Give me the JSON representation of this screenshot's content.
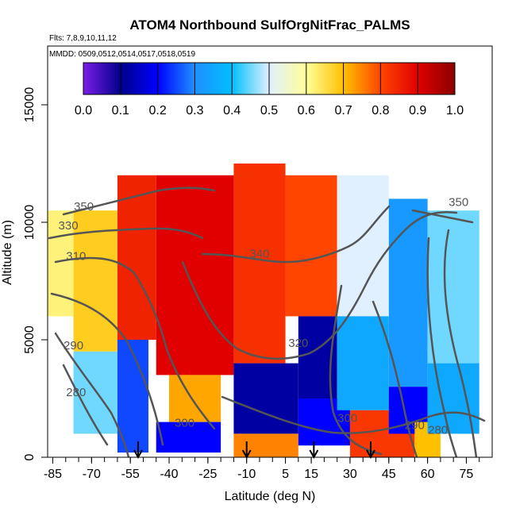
{
  "chart_data": {
    "type": "heatmap",
    "title": "ATOM4 Northbound SulfOrgNitFrac_PALMS",
    "subtitle_flights": "Flts: 7,8,9,10,11,12",
    "subtitle_dates": "MMDD: 0509,0512,0514,0517,0518,0519",
    "xlabel": "Latitude (deg N)",
    "ylabel": "Altitude (m)",
    "xlim": [
      -87,
      85
    ],
    "ylim": [
      0,
      17500
    ],
    "x_ticks": [
      -85,
      -70,
      -55,
      -40,
      -25,
      -10,
      5,
      15,
      30,
      45,
      60,
      75
    ],
    "x_tick_labels": [
      "-85",
      "-70",
      "-55",
      "-40",
      "-25",
      "-10",
      "5",
      "15",
      "30",
      "45",
      "60",
      "75"
    ],
    "y_ticks": [
      0,
      5000,
      10000,
      15000
    ],
    "y_tick_labels": [
      "0",
      "5000",
      "10000",
      "15000"
    ],
    "colorbar": {
      "range": [
        0.0,
        1.0
      ],
      "ticks": [
        0.0,
        0.1,
        0.2,
        0.3,
        0.4,
        0.5,
        0.6,
        0.7,
        0.8,
        0.9,
        1.0
      ],
      "tick_labels": [
        "0.0",
        "0.1",
        "0.2",
        "0.3",
        "0.4",
        "0.5",
        "0.6",
        "0.7",
        "0.8",
        "0.9",
        "1.0"
      ],
      "colors": [
        "#7a1ee6",
        "#00008b",
        "#0000ff",
        "#1e90ff",
        "#00bfff",
        "#e0f0ff",
        "#ffff99",
        "#ffc000",
        "#ff4500",
        "#e00000",
        "#8b0000"
      ]
    },
    "grid": false,
    "regions": [
      {
        "x": [
          -77,
          -60
        ],
        "y": [
          4500,
          10500
        ],
        "value": 0.68
      },
      {
        "x": [
          -87,
          -77
        ],
        "y": [
          6000,
          10500
        ],
        "value": 0.62
      },
      {
        "x": [
          -77,
          -60
        ],
        "y": [
          1000,
          4500
        ],
        "value": 0.45
      },
      {
        "x": [
          -60,
          -48
        ],
        "y": [
          200,
          5000
        ],
        "value": 0.25
      },
      {
        "x": [
          -60,
          -45
        ],
        "y": [
          5000,
          12000
        ],
        "value": 0.85
      },
      {
        "x": [
          -45,
          -15
        ],
        "y": [
          3500,
          12000
        ],
        "value": 0.9
      },
      {
        "x": [
          -40,
          -20
        ],
        "y": [
          1500,
          3500
        ],
        "value": 0.72
      },
      {
        "x": [
          -45,
          -20
        ],
        "y": [
          200,
          1500
        ],
        "value": 0.2
      },
      {
        "x": [
          -15,
          5
        ],
        "y": [
          4000,
          12500
        ],
        "value": 0.83
      },
      {
        "x": [
          -15,
          10
        ],
        "y": [
          1000,
          4000
        ],
        "value": 0.12
      },
      {
        "x": [
          -15,
          10
        ],
        "y": [
          0,
          1000
        ],
        "value": 0.75
      },
      {
        "x": [
          5,
          25
        ],
        "y": [
          6000,
          12000
        ],
        "value": 0.8
      },
      {
        "x": [
          10,
          25
        ],
        "y": [
          2500,
          6000
        ],
        "value": 0.12
      },
      {
        "x": [
          10,
          30
        ],
        "y": [
          500,
          2500
        ],
        "value": 0.2
      },
      {
        "x": [
          25,
          45
        ],
        "y": [
          6000,
          12000
        ],
        "value": 0.5
      },
      {
        "x": [
          25,
          45
        ],
        "y": [
          2000,
          6000
        ],
        "value": 0.35
      },
      {
        "x": [
          30,
          55
        ],
        "y": [
          0,
          2000
        ],
        "value": 0.82
      },
      {
        "x": [
          45,
          60
        ],
        "y": [
          3000,
          11000
        ],
        "value": 0.32
      },
      {
        "x": [
          45,
          60
        ],
        "y": [
          1000,
          3000
        ],
        "value": 0.2
      },
      {
        "x": [
          55,
          65
        ],
        "y": [
          0,
          1500
        ],
        "value": 0.7
      },
      {
        "x": [
          60,
          80
        ],
        "y": [
          4000,
          10500
        ],
        "value": 0.45
      },
      {
        "x": [
          60,
          80
        ],
        "y": [
          1000,
          4000
        ],
        "value": 0.35
      }
    ],
    "contour_labels": [
      {
        "text": "350",
        "x": -73,
        "y": 10500
      },
      {
        "text": "330",
        "x": -79,
        "y": 9700
      },
      {
        "text": "310",
        "x": -76,
        "y": 8400
      },
      {
        "text": "290",
        "x": -77,
        "y": 4600
      },
      {
        "text": "280",
        "x": -76,
        "y": 2600
      },
      {
        "text": "300",
        "x": -34,
        "y": 1300
      },
      {
        "text": "340",
        "x": -5,
        "y": 8500
      },
      {
        "text": "320",
        "x": 10,
        "y": 4700
      },
      {
        "text": "300",
        "x": 29,
        "y": 1500
      },
      {
        "text": "290",
        "x": 55,
        "y": 1200
      },
      {
        "text": "280",
        "x": 64,
        "y": 1000
      },
      {
        "text": "350",
        "x": 72,
        "y": 10700
      }
    ],
    "arrow_latitudes": [
      -52,
      -10,
      16,
      38
    ]
  }
}
